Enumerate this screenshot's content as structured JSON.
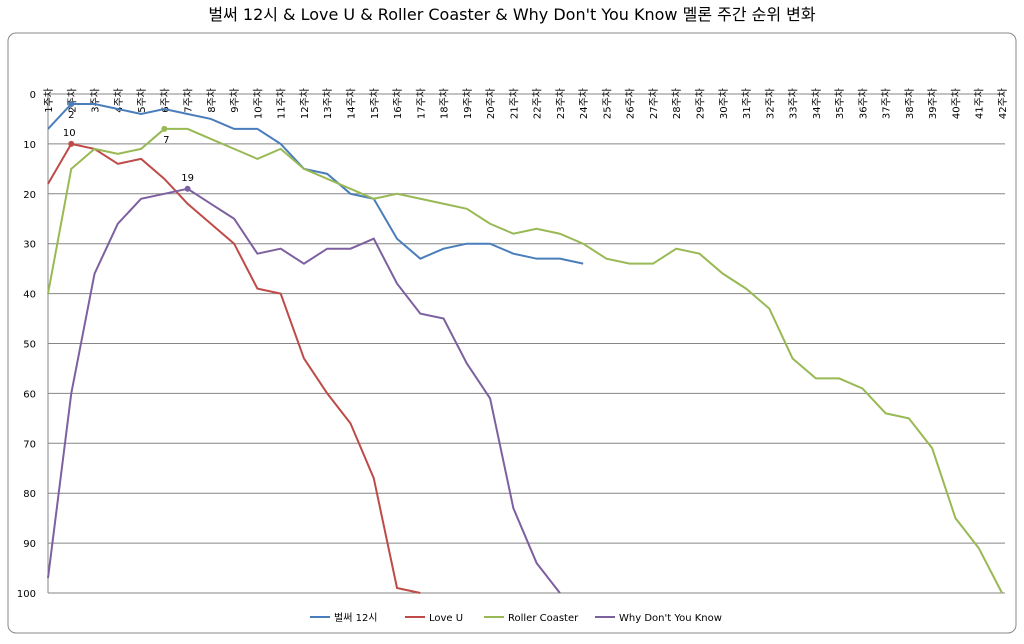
{
  "chart_data": {
    "type": "line",
    "title": "벌써 12시 & Love U & Roller Coaster & Why Don't You Know 멜론 주간 순위 변화",
    "categories": [
      "1주차",
      "2주차",
      "3주차",
      "4주차",
      "5주차",
      "6주차",
      "7주차",
      "8주차",
      "9주차",
      "10주차",
      "11주차",
      "12주차",
      "13주차",
      "14주차",
      "15주차",
      "16주차",
      "17주차",
      "18주차",
      "19주차",
      "20주차",
      "21주차",
      "22주차",
      "23주차",
      "24주차",
      "25주차",
      "26주차",
      "27주차",
      "28주차",
      "29주차",
      "30주차",
      "31주차",
      "32주차",
      "33주차",
      "34주차",
      "35주차",
      "36주차",
      "37주차",
      "38주차",
      "39주차",
      "40주차",
      "41주차",
      "42주차"
    ],
    "series": [
      {
        "name": "벌써 12시",
        "color": "#4a7ebb",
        "labeled_points": [
          1
        ],
        "values": [
          7,
          2,
          2,
          3,
          4,
          3,
          4,
          5,
          7,
          7,
          10,
          15,
          16,
          20,
          21,
          29,
          33,
          31,
          30,
          30,
          32,
          33,
          33,
          34,
          null,
          null,
          null,
          null,
          null,
          null,
          null,
          null,
          null,
          null,
          null,
          null,
          null,
          null,
          null,
          null,
          null,
          null
        ]
      },
      {
        "name": "Love U",
        "color": "#be4b48",
        "labeled_points": [
          1
        ],
        "values": [
          18,
          10,
          11,
          14,
          13,
          17,
          22,
          26,
          30,
          39,
          40,
          53,
          60,
          66,
          77,
          99,
          100,
          null,
          null,
          null,
          null,
          null,
          null,
          null,
          null,
          null,
          null,
          null,
          null,
          null,
          null,
          null,
          null,
          null,
          null,
          null,
          null,
          null,
          null,
          null,
          null,
          null
        ]
      },
      {
        "name": "Roller Coaster",
        "color": "#98b954",
        "labeled_points": [
          5
        ],
        "values": [
          40,
          15,
          11,
          12,
          11,
          7,
          7,
          9,
          11,
          13,
          11,
          15,
          17,
          19,
          21,
          20,
          21,
          22,
          23,
          26,
          28,
          27,
          28,
          30,
          33,
          34,
          34,
          31,
          32,
          36,
          39,
          43,
          53,
          57,
          57,
          59,
          64,
          65,
          71,
          85,
          91,
          100
        ]
      },
      {
        "name": "Why Don't You Know",
        "color": "#7d60a0",
        "labeled_points": [
          6
        ],
        "values": [
          97,
          60,
          36,
          26,
          21,
          20,
          19,
          22,
          25,
          32,
          31,
          34,
          31,
          31,
          29,
          38,
          44,
          45,
          54,
          61,
          83,
          94,
          100,
          null,
          null,
          null,
          null,
          null,
          null,
          null,
          null,
          null,
          null,
          null,
          null,
          null,
          null,
          null,
          null,
          null,
          null,
          null
        ]
      }
    ],
    "ylim": [
      0,
      100
    ],
    "y_reversed": true,
    "yticks": [
      0,
      10,
      20,
      30,
      40,
      50,
      60,
      70,
      80,
      90,
      100
    ],
    "grid": true,
    "legend": "bottom"
  }
}
